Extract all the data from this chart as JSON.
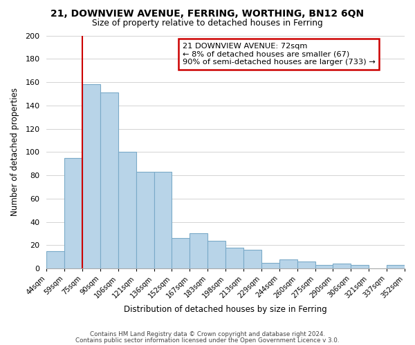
{
  "title": "21, DOWNVIEW AVENUE, FERRING, WORTHING, BN12 6QN",
  "subtitle": "Size of property relative to detached houses in Ferring",
  "xlabel": "Distribution of detached houses by size in Ferring",
  "ylabel": "Number of detached properties",
  "bin_labels": [
    "44sqm",
    "59sqm",
    "75sqm",
    "90sqm",
    "106sqm",
    "121sqm",
    "136sqm",
    "152sqm",
    "167sqm",
    "183sqm",
    "198sqm",
    "213sqm",
    "229sqm",
    "244sqm",
    "260sqm",
    "275sqm",
    "290sqm",
    "306sqm",
    "321sqm",
    "337sqm",
    "352sqm"
  ],
  "values": [
    15,
    95,
    158,
    151,
    100,
    83,
    83,
    26,
    30,
    24,
    18,
    16,
    5,
    8,
    6,
    3,
    4,
    3,
    0,
    3
  ],
  "bar_color": "#b8d4e8",
  "bar_edge_color": "#7aaac8",
  "vline_bin_index": 2,
  "ylim": [
    0,
    200
  ],
  "yticks": [
    0,
    20,
    40,
    60,
    80,
    100,
    120,
    140,
    160,
    180,
    200
  ],
  "annotation_title": "21 DOWNVIEW AVENUE: 72sqm",
  "annotation_line1": "← 8% of detached houses are smaller (67)",
  "annotation_line2": "90% of semi-detached houses are larger (733) →",
  "annotation_box_facecolor": "#ffffff",
  "annotation_box_edgecolor": "#cc0000",
  "vline_color": "#cc0000",
  "footer1": "Contains HM Land Registry data © Crown copyright and database right 2024.",
  "footer2": "Contains public sector information licensed under the Open Government Licence v 3.0."
}
